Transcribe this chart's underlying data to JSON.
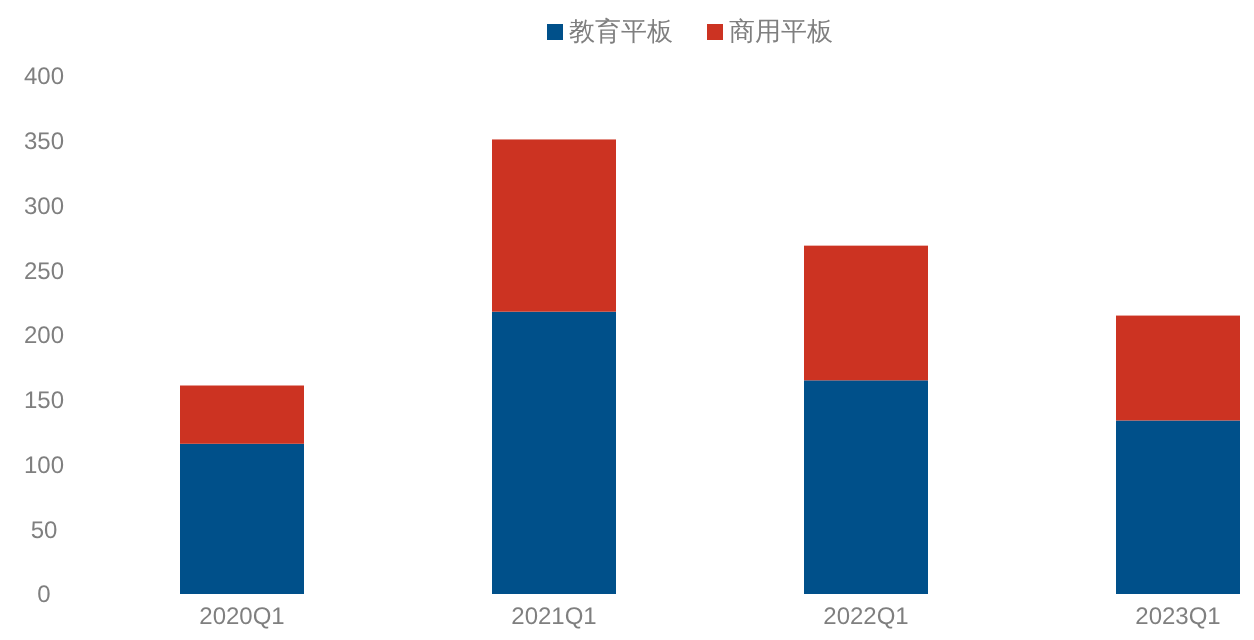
{
  "chart_data": {
    "type": "bar",
    "stacked": true,
    "categories": [
      "2020Q1",
      "2021Q1",
      "2022Q1",
      "2023Q1"
    ],
    "series": [
      {
        "name": "教育平板",
        "color": "#00508a",
        "values": [
          116,
          218,
          165,
          134
        ]
      },
      {
        "name": "商用平板",
        "color": "#cc3322",
        "values": [
          45,
          133,
          104,
          81
        ]
      }
    ],
    "ylim": [
      0,
      400
    ],
    "yticks": [
      0,
      50,
      100,
      150,
      200,
      250,
      300,
      350,
      400
    ],
    "grid": false,
    "legend": "top"
  }
}
